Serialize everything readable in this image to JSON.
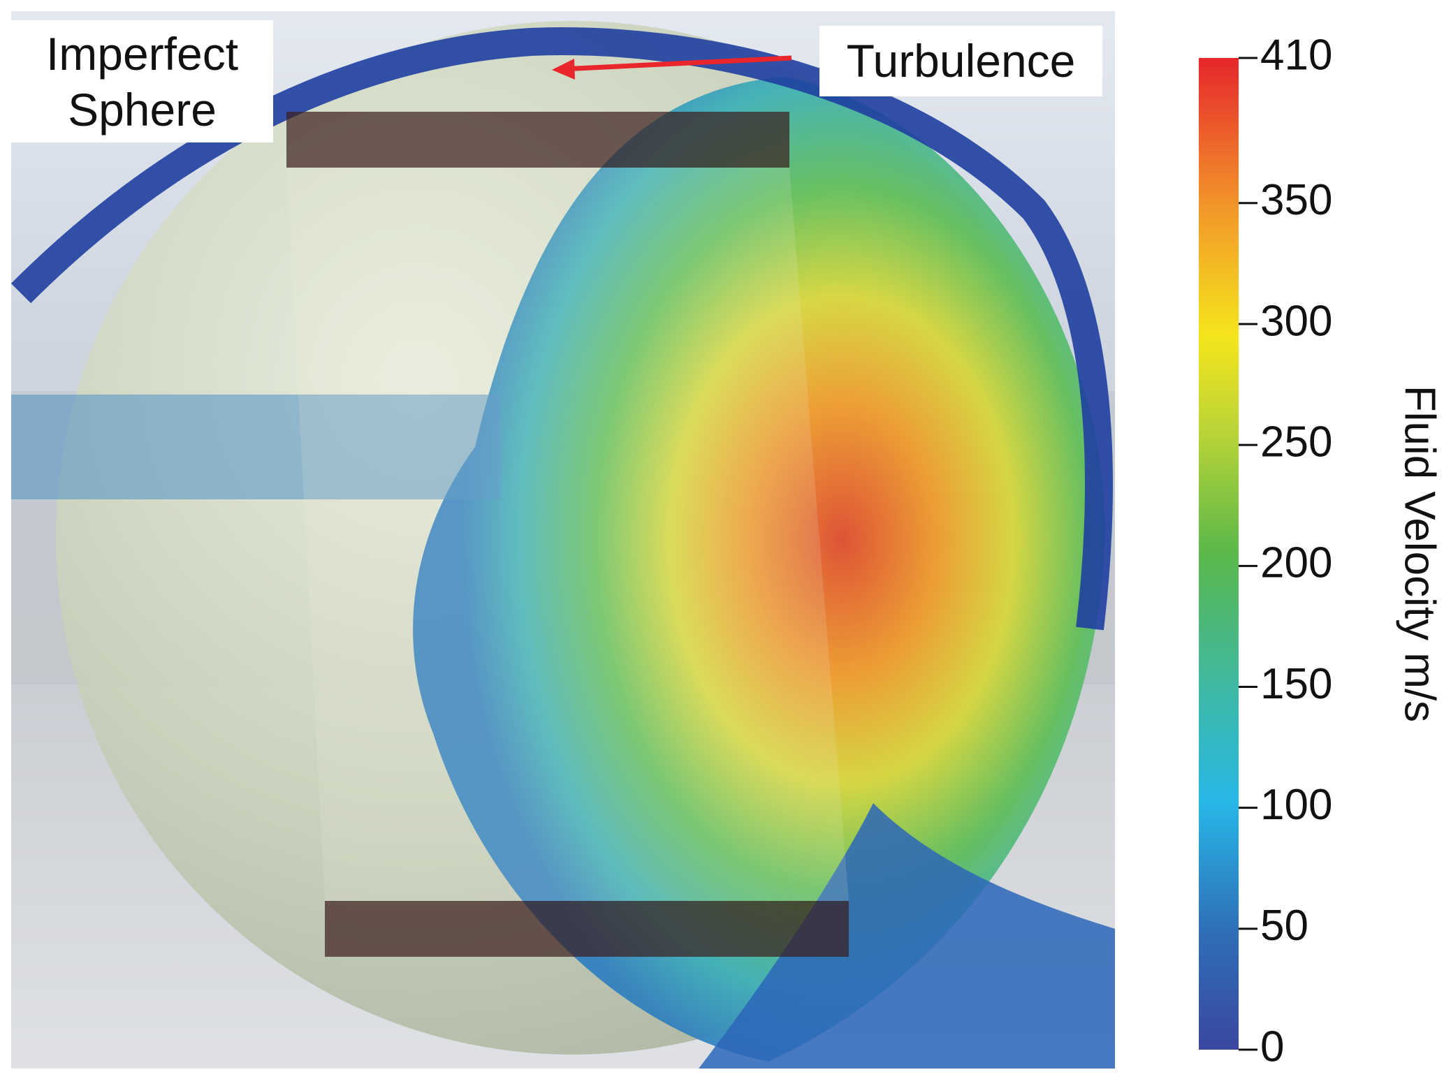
{
  "annotations": [
    {
      "text": "Imperfect Sphere"
    },
    {
      "text": "Turbulence"
    }
  ],
  "colorbar": {
    "label": "Fluid Velocity m/s",
    "lim": [
      0,
      410
    ],
    "ticks": [
      0,
      50,
      100,
      150,
      200,
      250,
      300,
      350,
      410
    ]
  }
}
